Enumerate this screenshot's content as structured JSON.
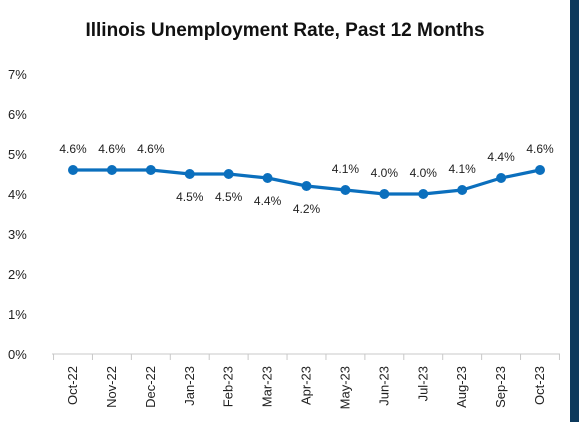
{
  "chart_data": {
    "type": "line",
    "title": "Illinois Unemployment Rate, Past 12 Months",
    "xlabel": "",
    "ylabel": "",
    "categories": [
      "Oct-22",
      "Nov-22",
      "Dec-22",
      "Jan-23",
      "Feb-23",
      "Mar-23",
      "Apr-23",
      "May-23",
      "Jun-23",
      "Jul-23",
      "Aug-23",
      "Sep-23",
      "Oct-23"
    ],
    "series": [
      {
        "values": [
          4.6,
          4.6,
          4.6,
          4.5,
          4.5,
          4.4,
          4.2,
          4.1,
          4.0,
          4.0,
          4.1,
          4.4,
          4.6
        ],
        "labels": [
          "4.6%",
          "4.6%",
          "4.6%",
          "4.5%",
          "4.5%",
          "4.4%",
          "4.2%",
          "4.1%",
          "4.0%",
          "4.0%",
          "4.1%",
          "4.4%",
          "4.6%"
        ],
        "label_positions": [
          "above",
          "above",
          "above",
          "below",
          "below",
          "below",
          "below",
          "above",
          "above",
          "above",
          "above",
          "above",
          "above"
        ]
      }
    ],
    "ylim": [
      0,
      7
    ],
    "yticks": [
      0,
      1,
      2,
      3,
      4,
      5,
      6,
      7
    ],
    "ytick_labels": [
      "0%",
      "1%",
      "2%",
      "3%",
      "4%",
      "5%",
      "6%",
      "7%"
    ],
    "grid": false,
    "line_color": "#0b6fbd",
    "frame_color": "#0d3a5c"
  }
}
